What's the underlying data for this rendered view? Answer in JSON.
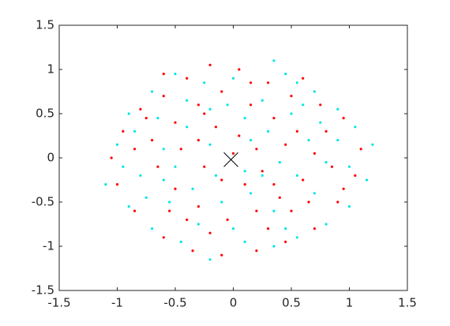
{
  "chart_data": {
    "type": "scatter",
    "xlim": [
      -1.5,
      1.5
    ],
    "ylim": [
      -1.5,
      1.5
    ],
    "xticks": [
      -1.5,
      -1,
      -0.5,
      0,
      0.5,
      1,
      1.5
    ],
    "yticks": [
      -1.5,
      -1,
      -0.5,
      0,
      0.5,
      1,
      1.5
    ],
    "grid": false,
    "series": [
      {
        "color": "#00e5e5",
        "marker": "dot",
        "x": [
          -1.1,
          -1.0,
          -0.9,
          -0.7,
          -0.5,
          -0.25,
          0.0,
          0.35,
          0.55,
          0.7,
          0.9,
          1.05,
          1.2,
          1.15,
          1.0,
          0.8,
          0.55,
          0.35,
          0.1,
          -0.2,
          -0.45,
          -0.7,
          -0.9,
          -0.8,
          -0.6,
          -0.4,
          -0.2,
          0.1,
          0.3,
          0.5,
          0.65,
          0.8,
          0.55,
          0.35,
          0.15,
          -0.1,
          -0.35,
          -0.55,
          -0.75,
          -0.5,
          -0.2,
          0.1,
          0.4,
          0.25,
          -0.05,
          -0.65,
          0.9,
          1.0,
          0.7,
          -0.3,
          0.0,
          0.45,
          -0.85,
          -0.4,
          0.15,
          -0.15,
          0.6,
          -0.6,
          0.25,
          0.75,
          -0.95,
          0.45
        ],
        "values": [
          -0.3,
          0.15,
          0.5,
          0.75,
          0.95,
          0.85,
          0.9,
          1.1,
          0.85,
          0.75,
          0.55,
          0.35,
          0.15,
          -0.25,
          -0.55,
          -0.75,
          -0.9,
          -1.0,
          -0.95,
          -1.15,
          -0.95,
          -0.8,
          -0.55,
          -0.2,
          0.1,
          0.35,
          0.55,
          0.45,
          0.3,
          0.5,
          0.2,
          -0.05,
          -0.2,
          -0.6,
          -0.4,
          -0.5,
          -0.35,
          -0.5,
          -0.45,
          -0.1,
          0.15,
          -0.15,
          -0.05,
          0.65,
          0.6,
          0.45,
          0.2,
          -0.1,
          -0.4,
          -0.75,
          -0.8,
          -0.8,
          0.3,
          0.65,
          0.2,
          -0.2,
          0.6,
          -0.25,
          -0.2,
          0.4,
          -0.1,
          0.95
        ]
      },
      {
        "color": "#ff0000",
        "marker": "dot",
        "x": [
          -0.95,
          -0.8,
          -0.6,
          -0.4,
          -0.2,
          0.05,
          0.3,
          0.5,
          0.75,
          0.95,
          1.1,
          1.05,
          0.9,
          0.7,
          0.45,
          0.2,
          -0.1,
          -0.35,
          -0.6,
          -0.85,
          -1.0,
          -1.05,
          -0.7,
          -0.5,
          -0.3,
          -0.1,
          0.15,
          0.35,
          0.55,
          0.7,
          0.6,
          0.4,
          0.2,
          -0.05,
          -0.3,
          -0.5,
          -0.65,
          -0.3,
          -0.15,
          0.05,
          0.2,
          0.25,
          0.1,
          -0.1,
          -0.25,
          0.0,
          -0.4,
          0.6,
          0.8,
          0.85,
          -0.75,
          -0.55,
          0.3,
          -0.2,
          0.5,
          -0.85,
          0.45,
          -0.45,
          0.15,
          -0.6,
          0.95,
          0.65,
          -0.25,
          0.35
        ],
        "values": [
          0.3,
          0.55,
          0.7,
          0.9,
          1.05,
          1.0,
          0.85,
          0.7,
          0.6,
          0.45,
          0.1,
          -0.2,
          -0.5,
          -0.8,
          -0.95,
          -1.05,
          -1.1,
          -1.05,
          -0.9,
          -0.6,
          -0.3,
          0.0,
          0.2,
          0.4,
          0.6,
          0.75,
          0.6,
          0.45,
          0.3,
          0.05,
          -0.25,
          -0.45,
          -0.6,
          -0.7,
          -0.55,
          -0.35,
          -0.1,
          0.2,
          0.35,
          0.25,
          0.1,
          -0.15,
          -0.3,
          -0.25,
          -0.1,
          0.05,
          -0.7,
          0.9,
          0.3,
          -0.1,
          0.45,
          -0.6,
          -0.8,
          -0.85,
          -0.6,
          0.1,
          0.15,
          0.1,
          0.85,
          0.95,
          -0.35,
          -0.5,
          0.5,
          -0.3
        ]
      },
      {
        "color": "#000000",
        "marker": "cross",
        "x": [
          -0.02
        ],
        "values": [
          -0.02
        ]
      }
    ]
  }
}
